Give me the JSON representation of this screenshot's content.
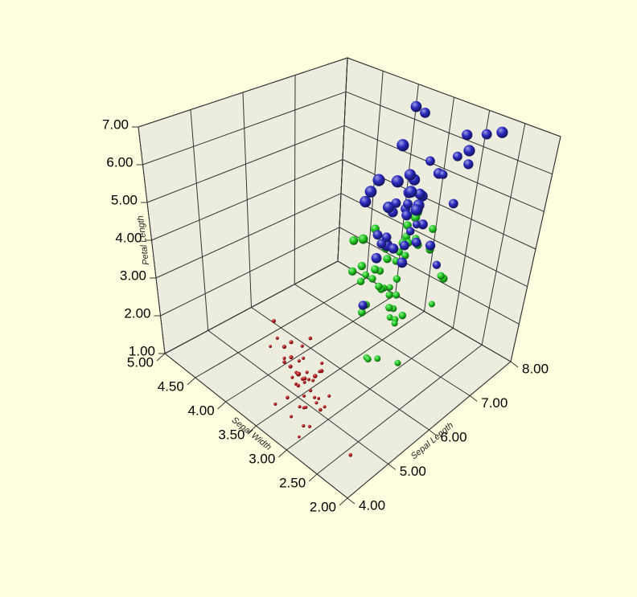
{
  "chart_data": {
    "type": "scatter3d",
    "x_label": "Sepal Length",
    "y_label": "Sepal Width",
    "z_label": "Petal Length",
    "xlim": [
      4,
      8
    ],
    "ylim": [
      2,
      5
    ],
    "zlim": [
      1,
      7
    ],
    "xticks": [
      {
        "value": 4,
        "label": "4.00"
      },
      {
        "value": 5,
        "label": "5.00"
      },
      {
        "value": 6,
        "label": "6.00"
      },
      {
        "value": 7,
        "label": "7.00"
      },
      {
        "value": 8,
        "label": "8.00"
      }
    ],
    "yticks": [
      {
        "value": 2,
        "label": "2.00"
      },
      {
        "value": 2.5,
        "label": "2.50"
      },
      {
        "value": 3,
        "label": "3.00"
      },
      {
        "value": 3.5,
        "label": "3.50"
      },
      {
        "value": 4,
        "label": "4.00"
      },
      {
        "value": 4.5,
        "label": "4.50"
      },
      {
        "value": 5,
        "label": "5.00"
      }
    ],
    "zticks": [
      {
        "value": 1,
        "label": "1.00"
      },
      {
        "value": 2,
        "label": "2.00"
      },
      {
        "value": 3,
        "label": "3.00"
      },
      {
        "value": 4,
        "label": "4.00"
      },
      {
        "value": 5,
        "label": "5.00"
      },
      {
        "value": 6,
        "label": "6.00"
      },
      {
        "value": 7,
        "label": "7.00"
      }
    ],
    "grid": true,
    "wall_color": "#ececdf",
    "background": "#ffffe0",
    "series": [
      {
        "color": "#b81414",
        "x": [
          5.1,
          4.9,
          4.7,
          4.6,
          5.0,
          5.4,
          4.6,
          5.0,
          4.4,
          4.9,
          5.4,
          4.8,
          4.8,
          4.3,
          5.8,
          5.7,
          5.4,
          5.1,
          5.7,
          5.1,
          5.4,
          5.1,
          4.6,
          5.1,
          4.8,
          5.0,
          5.0,
          5.2,
          5.2,
          4.7,
          4.8,
          5.4,
          5.2,
          5.5,
          4.9,
          5.0,
          5.5,
          4.9,
          4.4,
          5.1,
          5.0,
          4.5,
          4.4,
          5.0,
          5.1,
          4.8,
          5.1,
          4.6,
          5.3,
          5.0
        ],
        "y": [
          3.5,
          3.0,
          3.2,
          3.1,
          3.6,
          3.9,
          3.4,
          3.4,
          2.9,
          3.1,
          3.7,
          3.4,
          3.0,
          3.0,
          4.0,
          4.4,
          3.9,
          3.5,
          3.8,
          3.8,
          3.4,
          3.7,
          3.6,
          3.3,
          3.4,
          3.0,
          3.4,
          3.5,
          3.4,
          3.2,
          3.1,
          3.4,
          4.1,
          4.2,
          3.1,
          3.2,
          3.5,
          3.1,
          3.0,
          3.4,
          3.5,
          2.3,
          3.2,
          3.5,
          3.8,
          3.0,
          3.8,
          3.2,
          3.7,
          3.3
        ],
        "z": [
          1.4,
          1.4,
          1.3,
          1.5,
          1.4,
          1.7,
          1.4,
          1.5,
          1.4,
          1.5,
          1.5,
          1.6,
          1.4,
          1.1,
          1.2,
          1.5,
          1.3,
          1.4,
          1.7,
          1.5,
          1.7,
          1.5,
          1.0,
          1.7,
          1.9,
          1.6,
          1.6,
          1.5,
          1.4,
          1.6,
          1.6,
          1.5,
          1.5,
          1.4,
          1.5,
          1.2,
          1.3,
          1.5,
          1.3,
          1.5,
          1.3,
          1.3,
          1.3,
          1.6,
          1.9,
          1.4,
          1.6,
          1.4,
          1.5,
          1.4
        ],
        "sizes": [
          0.2,
          0.2,
          0.2,
          0.2,
          0.2,
          0.4,
          0.3,
          0.2,
          0.2,
          0.1,
          0.2,
          0.2,
          0.1,
          0.1,
          0.2,
          0.4,
          0.4,
          0.3,
          0.3,
          0.3,
          0.2,
          0.4,
          0.2,
          0.5,
          0.2,
          0.2,
          0.4,
          0.2,
          0.2,
          0.2,
          0.2,
          0.4,
          0.1,
          0.2,
          0.1,
          0.2,
          0.2,
          0.1,
          0.2,
          0.2,
          0.3,
          0.3,
          0.2,
          0.6,
          0.4,
          0.3,
          0.2,
          0.2,
          0.2,
          0.2
        ]
      },
      {
        "color": "#22cc22",
        "x": [
          7.0,
          6.4,
          6.9,
          5.5,
          6.5,
          5.7,
          6.3,
          4.9,
          6.6,
          5.2,
          5.0,
          5.9,
          6.0,
          6.1,
          5.6,
          6.7,
          5.6,
          5.8,
          6.2,
          5.6,
          5.9,
          6.1,
          6.3,
          6.1,
          6.4,
          6.6,
          6.8,
          6.7,
          6.0,
          5.7,
          5.5,
          5.5,
          5.8,
          6.0,
          5.4,
          6.0,
          6.7,
          6.3,
          5.6,
          5.5,
          5.5,
          6.1,
          5.8,
          5.0,
          5.6,
          5.7,
          5.7,
          6.2,
          5.1,
          5.7
        ],
        "y": [
          3.2,
          3.2,
          3.1,
          2.3,
          2.8,
          2.8,
          3.3,
          2.4,
          2.9,
          2.7,
          2.0,
          3.0,
          2.2,
          2.9,
          2.9,
          3.1,
          3.0,
          2.7,
          2.2,
          2.5,
          3.2,
          2.8,
          2.5,
          2.8,
          2.9,
          3.0,
          2.8,
          3.0,
          2.9,
          2.6,
          2.4,
          2.4,
          2.7,
          2.7,
          3.0,
          3.4,
          3.1,
          2.3,
          3.0,
          2.5,
          2.6,
          3.0,
          2.6,
          2.3,
          2.7,
          3.0,
          2.9,
          2.9,
          2.5,
          2.8
        ],
        "z": [
          4.7,
          4.5,
          4.9,
          4.0,
          4.6,
          4.5,
          4.7,
          3.3,
          4.6,
          3.9,
          3.5,
          4.2,
          4.0,
          4.7,
          3.6,
          4.4,
          4.5,
          4.1,
          4.5,
          3.9,
          4.8,
          4.0,
          4.9,
          4.7,
          4.3,
          4.4,
          4.8,
          5.0,
          4.5,
          3.5,
          3.8,
          3.7,
          3.9,
          5.1,
          4.5,
          4.5,
          4.7,
          4.4,
          4.1,
          4.0,
          4.4,
          4.6,
          4.0,
          3.3,
          4.2,
          4.2,
          4.2,
          4.3,
          3.0,
          4.1
        ],
        "sizes": [
          1.4,
          1.5,
          1.5,
          1.3,
          1.5,
          1.3,
          1.6,
          1.0,
          1.3,
          1.4,
          1.0,
          1.5,
          1.0,
          1.4,
          1.3,
          1.4,
          1.5,
          1.0,
          1.5,
          1.1,
          1.8,
          1.3,
          1.5,
          1.2,
          1.3,
          1.4,
          1.4,
          1.7,
          1.5,
          1.0,
          1.1,
          1.0,
          1.2,
          1.6,
          1.5,
          1.6,
          1.5,
          1.3,
          1.3,
          1.3,
          1.2,
          1.4,
          1.2,
          1.0,
          1.3,
          1.2,
          1.3,
          1.3,
          1.1,
          1.3
        ]
      },
      {
        "color": "#2a2abf",
        "x": [
          6.3,
          5.8,
          7.1,
          6.3,
          6.5,
          7.6,
          4.9,
          7.3,
          6.7,
          7.2,
          6.5,
          6.4,
          6.8,
          5.7,
          5.8,
          6.4,
          6.5,
          7.7,
          7.7,
          6.0,
          6.9,
          5.6,
          7.7,
          6.3,
          6.7,
          7.2,
          6.2,
          6.1,
          6.4,
          7.2,
          7.4,
          7.9,
          6.4,
          6.3,
          6.1,
          7.7,
          6.3,
          6.4,
          6.0,
          6.9,
          6.7,
          6.9,
          5.8,
          6.8,
          6.7,
          6.7,
          6.3,
          6.5,
          6.2,
          5.9
        ],
        "y": [
          3.3,
          2.7,
          3.0,
          2.9,
          3.0,
          3.0,
          2.5,
          2.9,
          2.5,
          3.6,
          3.2,
          2.7,
          3.0,
          2.5,
          2.8,
          3.2,
          3.0,
          3.8,
          2.6,
          2.2,
          3.2,
          2.8,
          2.8,
          2.7,
          3.3,
          3.2,
          2.8,
          3.0,
          2.8,
          3.0,
          2.8,
          3.8,
          2.8,
          2.8,
          2.6,
          3.0,
          3.4,
          3.1,
          3.0,
          3.1,
          3.1,
          3.1,
          2.7,
          3.2,
          3.3,
          3.0,
          2.5,
          3.0,
          3.4,
          3.0
        ],
        "z": [
          6.0,
          5.1,
          5.9,
          5.6,
          5.8,
          6.6,
          4.5,
          6.3,
          5.8,
          6.1,
          5.1,
          5.3,
          5.5,
          5.0,
          5.1,
          5.3,
          5.5,
          6.7,
          6.9,
          5.0,
          5.7,
          4.9,
          6.7,
          4.9,
          5.7,
          6.0,
          4.8,
          4.9,
          5.6,
          5.8,
          6.1,
          6.4,
          5.6,
          5.1,
          5.6,
          6.1,
          5.6,
          5.5,
          4.8,
          5.4,
          5.6,
          5.1,
          5.1,
          5.9,
          5.7,
          5.2,
          5.0,
          5.2,
          5.4,
          5.1
        ],
        "sizes": [
          2.5,
          1.9,
          2.1,
          1.8,
          2.2,
          2.1,
          1.7,
          1.8,
          1.8,
          2.5,
          2.0,
          1.9,
          2.1,
          2.0,
          2.4,
          2.3,
          1.8,
          2.2,
          2.3,
          1.5,
          2.3,
          2.0,
          2.0,
          1.8,
          2.1,
          1.8,
          1.8,
          1.8,
          2.1,
          1.6,
          1.9,
          2.0,
          2.2,
          1.5,
          1.4,
          2.3,
          2.4,
          1.8,
          1.8,
          2.1,
          2.4,
          2.3,
          1.9,
          2.3,
          2.5,
          2.3,
          1.9,
          2.0,
          2.3,
          1.8
        ]
      }
    ]
  }
}
